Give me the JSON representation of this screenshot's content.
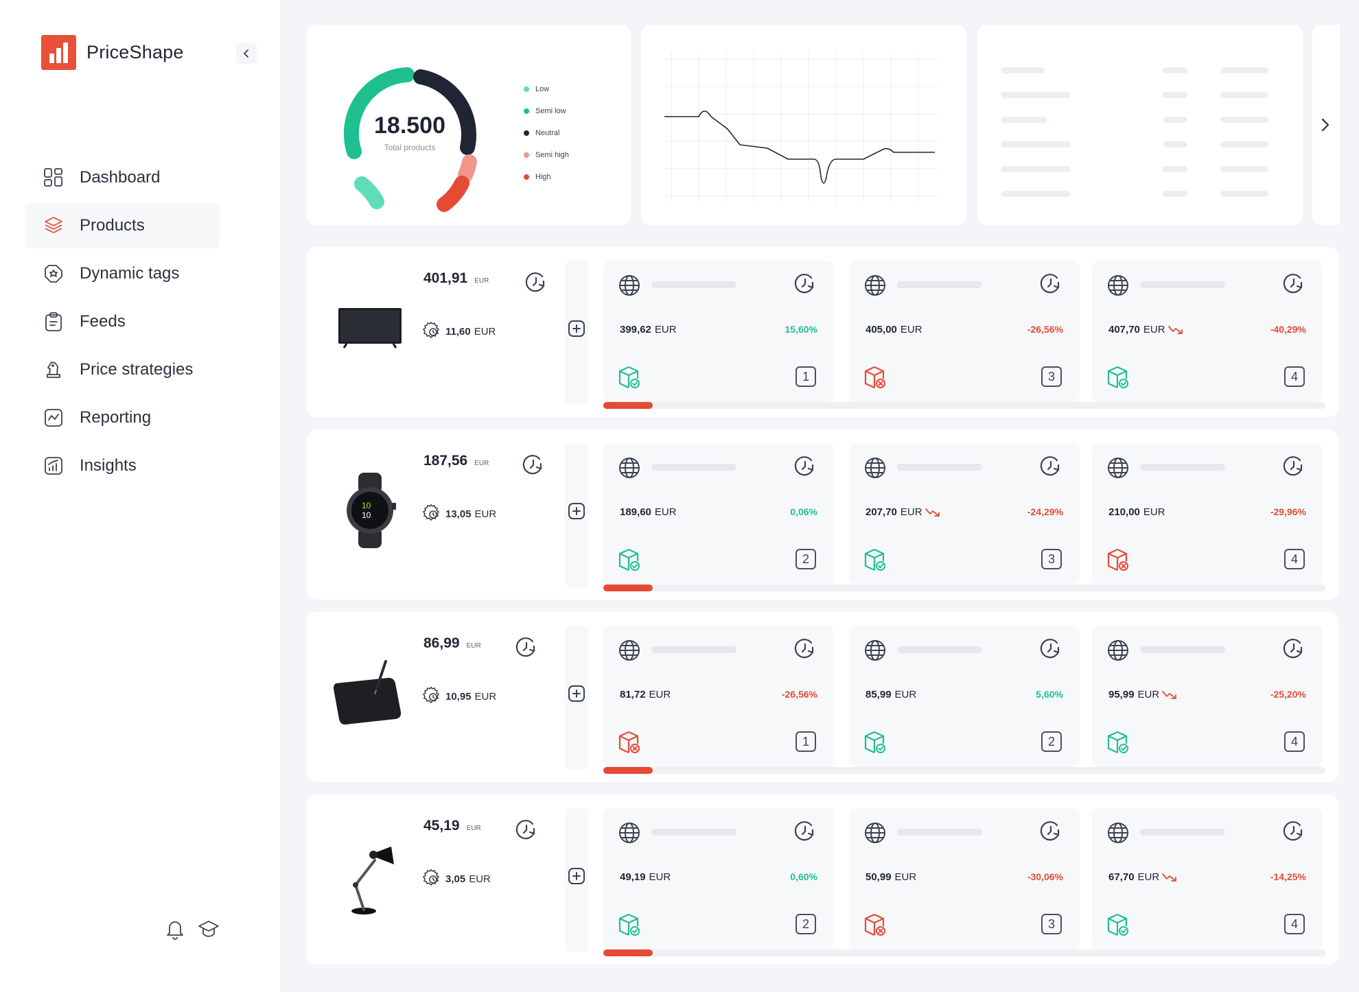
{
  "app": {
    "name": "PriceShape"
  },
  "colors": {
    "accent": "#e8503a",
    "positive": "#1fbf8f",
    "negative": "#e54a35",
    "neutral": "#1f2533"
  },
  "nav": [
    {
      "label": "Dashboard",
      "icon": "dashboard-icon",
      "active": false
    },
    {
      "label": "Products",
      "icon": "layers-icon",
      "active": true
    },
    {
      "label": "Dynamic tags",
      "icon": "tag-icon",
      "active": false
    },
    {
      "label": "Feeds",
      "icon": "clipboard-icon",
      "active": false
    },
    {
      "label": "Price strategies",
      "icon": "chess-knight-icon",
      "active": false
    },
    {
      "label": "Reporting",
      "icon": "reporting-icon",
      "active": false
    },
    {
      "label": "Insights",
      "icon": "insights-icon",
      "active": false
    }
  ],
  "summary": {
    "total": "18.500",
    "total_label": "Total products",
    "legend": [
      {
        "label": "Low",
        "color": "#5fdcb9"
      },
      {
        "label": "Semi low",
        "color": "#1fbf8f"
      },
      {
        "label": "Neutral",
        "color": "#1f2533"
      },
      {
        "label": "Semi high",
        "color": "#f2958a"
      },
      {
        "label": "High",
        "color": "#e54a35"
      }
    ]
  },
  "products": [
    {
      "image": "tv",
      "price": "401,91",
      "currency": "EUR",
      "cost": "11,60 EUR",
      "progress": 0.068,
      "competitors": [
        {
          "price": "399,62 EUR",
          "trend_down": false,
          "pct": "15,60%",
          "positive": true,
          "stock": "in-stock",
          "rank": "1"
        },
        {
          "price": "405,00 EUR",
          "trend_down": false,
          "pct": "-26,56%",
          "positive": false,
          "stock": "out-of-stock",
          "rank": "3"
        },
        {
          "price": "407,70 EUR",
          "trend_down": true,
          "pct": "-40,29%",
          "positive": false,
          "stock": "in-stock",
          "rank": "4"
        }
      ]
    },
    {
      "image": "watch",
      "price": "187,56",
      "currency": "EUR",
      "cost": "13,05 EUR",
      "progress": 0.068,
      "competitors": [
        {
          "price": "189,60 EUR",
          "trend_down": false,
          "pct": "0,06%",
          "positive": true,
          "stock": "in-stock",
          "rank": "2"
        },
        {
          "price": "207,70 EUR",
          "trend_down": true,
          "pct": "-24,29%",
          "positive": false,
          "stock": "in-stock",
          "rank": "3"
        },
        {
          "price": "210,00 EUR",
          "trend_down": false,
          "pct": "-29,96%",
          "positive": false,
          "stock": "out-of-stock",
          "rank": "4"
        }
      ]
    },
    {
      "image": "tablet",
      "price": "86,99",
      "currency": "EUR",
      "cost": "10,95 EUR",
      "progress": 0.068,
      "competitors": [
        {
          "price": "81,72 EUR",
          "trend_down": false,
          "pct": "-26,56%",
          "positive": false,
          "stock": "out-of-stock",
          "rank": "1"
        },
        {
          "price": "85,99 EUR",
          "trend_down": false,
          "pct": "5,60%",
          "positive": true,
          "stock": "in-stock",
          "rank": "2"
        },
        {
          "price": "95,99 EUR",
          "trend_down": true,
          "pct": "-25,20%",
          "positive": false,
          "stock": "in-stock",
          "rank": "4"
        }
      ]
    },
    {
      "image": "lamp",
      "price": "45,19",
      "currency": "EUR",
      "cost": "3,05 EUR",
      "progress": 0.068,
      "competitors": [
        {
          "price": "49,19 EUR",
          "trend_down": false,
          "pct": "0,60%",
          "positive": true,
          "stock": "in-stock",
          "rank": "2"
        },
        {
          "price": "50,99 EUR",
          "trend_down": false,
          "pct": "-30,06%",
          "positive": false,
          "stock": "out-of-stock",
          "rank": "3"
        },
        {
          "price": "67,70 EUR",
          "trend_down": true,
          "pct": "-14,25%",
          "positive": false,
          "stock": "in-stock",
          "rank": "4"
        }
      ]
    }
  ]
}
